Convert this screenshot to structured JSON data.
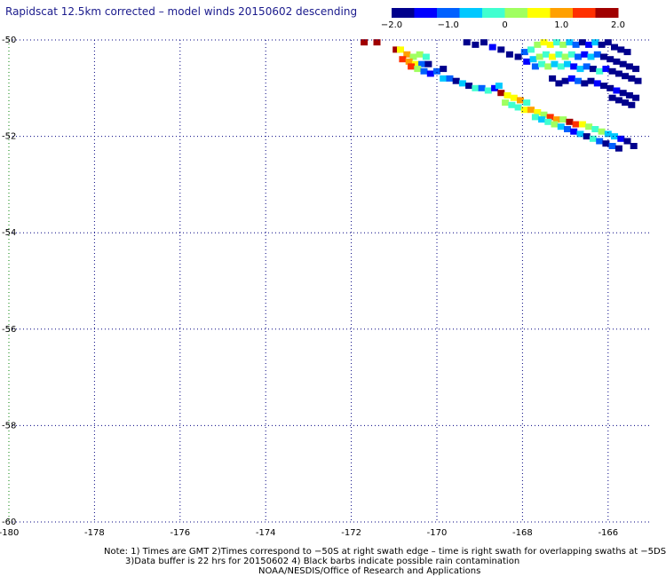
{
  "title": "Rapidscat 12.5km corrected – model winds 20150602 descending",
  "colorbar": {
    "min": -2.0,
    "max": 2.0,
    "tick_labels": [
      "−2.0",
      "−1.0",
      "0",
      "1.0",
      "2.0"
    ],
    "tick_values": [
      -2.0,
      -1.0,
      0,
      1.0,
      2.0
    ],
    "colors": [
      "#00008c",
      "#0000ff",
      "#0060ff",
      "#00c8ff",
      "#40ffd0",
      "#a0ff60",
      "#ffff00",
      "#ffa000",
      "#ff3000",
      "#a00000"
    ]
  },
  "map": {
    "lon_range": [
      -180,
      -165
    ],
    "lat_range": [
      -60,
      -50
    ],
    "lon_ticks": [
      "-180",
      "-178",
      "-176",
      "-174",
      "-172",
      "-170",
      "-168",
      "-166"
    ],
    "lon_tick_values": [
      -180,
      -178,
      -176,
      -174,
      -172,
      -170,
      -168,
      -166
    ],
    "lat_ticks": [
      "-50",
      "-52",
      "-54",
      "-56",
      "-58",
      "-60"
    ],
    "lat_tick_values": [
      -50,
      -52,
      -54,
      -56,
      -58,
      -60
    ],
    "gridline_color": "#000080",
    "swath_cells": [
      [
        -171.7,
        -50.05,
        2.0
      ],
      [
        -171.4,
        -50.05,
        2.0
      ],
      [
        -170.95,
        -50.2,
        1.8
      ],
      [
        -170.85,
        -50.2,
        0.5
      ],
      [
        -170.7,
        -50.3,
        0.8
      ],
      [
        -170.55,
        -50.35,
        0.3
      ],
      [
        -170.4,
        -50.3,
        0.0
      ],
      [
        -170.25,
        -50.35,
        -0.2
      ],
      [
        -170.8,
        -50.4,
        1.2
      ],
      [
        -170.65,
        -50.45,
        0.9
      ],
      [
        -170.5,
        -50.5,
        0.6
      ],
      [
        -170.35,
        -50.5,
        -1.2
      ],
      [
        -170.2,
        -50.5,
        -1.8
      ],
      [
        -170.6,
        -50.55,
        1.4
      ],
      [
        -170.45,
        -50.6,
        0.2
      ],
      [
        -170.3,
        -50.65,
        -0.9
      ],
      [
        -170.15,
        -50.7,
        -1.5
      ],
      [
        -170.0,
        -50.65,
        -1.0
      ],
      [
        -169.85,
        -50.6,
        -2.0
      ],
      [
        -169.85,
        -50.8,
        -0.5
      ],
      [
        -169.7,
        -50.8,
        -1.2
      ],
      [
        -169.55,
        -50.85,
        -1.8
      ],
      [
        -169.4,
        -50.9,
        -0.8
      ],
      [
        -169.25,
        -50.95,
        -1.6
      ],
      [
        -169.1,
        -51.0,
        -0.4
      ],
      [
        -168.95,
        -51.0,
        -1.2
      ],
      [
        -168.8,
        -51.05,
        -0.2
      ],
      [
        -168.65,
        -51.0,
        -1.5
      ],
      [
        -168.55,
        -50.95,
        -0.5
      ],
      [
        -168.5,
        -51.1,
        1.6
      ],
      [
        -168.35,
        -51.15,
        0.6
      ],
      [
        -168.2,
        -51.2,
        0.4
      ],
      [
        -168.05,
        -51.25,
        0.9
      ],
      [
        -167.9,
        -51.3,
        -0.2
      ],
      [
        -168.4,
        -51.3,
        0.3
      ],
      [
        -168.25,
        -51.35,
        -0.4
      ],
      [
        -168.1,
        -51.4,
        -0.1
      ],
      [
        -167.95,
        -51.45,
        0.5
      ],
      [
        -167.8,
        -51.45,
        1.0
      ],
      [
        -167.65,
        -51.5,
        0.6
      ],
      [
        -167.5,
        -51.55,
        0.2
      ],
      [
        -167.35,
        -51.6,
        1.3
      ],
      [
        -167.2,
        -51.65,
        0.8
      ],
      [
        -167.05,
        -51.65,
        0.3
      ],
      [
        -166.9,
        -51.7,
        1.8
      ],
      [
        -166.75,
        -51.75,
        1.5
      ],
      [
        -166.6,
        -51.75,
        0.7
      ],
      [
        -166.45,
        -51.8,
        0.1
      ],
      [
        -166.3,
        -51.85,
        -0.3
      ],
      [
        -166.15,
        -51.9,
        0.2
      ],
      [
        -166.0,
        -51.95,
        -0.5
      ],
      [
        -165.85,
        -52.0,
        -0.8
      ],
      [
        -165.7,
        -52.05,
        -1.3
      ],
      [
        -165.55,
        -52.1,
        -1.8
      ],
      [
        -165.4,
        -52.2,
        -2.0
      ],
      [
        -167.7,
        -51.6,
        -0.3
      ],
      [
        -167.55,
        -51.65,
        -0.6
      ],
      [
        -167.4,
        -51.7,
        -0.2
      ],
      [
        -167.25,
        -51.75,
        0.1
      ],
      [
        -167.1,
        -51.8,
        -0.5
      ],
      [
        -166.95,
        -51.85,
        -1.1
      ],
      [
        -166.8,
        -51.9,
        -1.5
      ],
      [
        -166.65,
        -51.95,
        -0.7
      ],
      [
        -166.5,
        -52.0,
        -1.7
      ],
      [
        -166.35,
        -52.05,
        -0.4
      ],
      [
        -166.2,
        -52.1,
        -1.0
      ],
      [
        -166.05,
        -52.15,
        -1.6
      ],
      [
        -165.9,
        -52.2,
        -0.9
      ],
      [
        -165.75,
        -52.25,
        -2.0
      ],
      [
        -169.3,
        -50.05,
        -2.0
      ],
      [
        -169.1,
        -50.1,
        -1.6
      ],
      [
        -168.9,
        -50.05,
        -1.9
      ],
      [
        -168.7,
        -50.15,
        -1.4
      ],
      [
        -168.5,
        -50.2,
        -2.0
      ],
      [
        -168.3,
        -50.3,
        -1.8
      ],
      [
        -168.1,
        -50.35,
        -2.0
      ],
      [
        -167.95,
        -50.25,
        -0.9
      ],
      [
        -167.8,
        -50.2,
        -0.3
      ],
      [
        -167.65,
        -50.1,
        0.2
      ],
      [
        -167.5,
        -50.05,
        0.7
      ],
      [
        -167.35,
        -50.1,
        0.4
      ],
      [
        -167.2,
        -50.05,
        -0.1
      ],
      [
        -167.05,
        -50.1,
        0.3
      ],
      [
        -166.9,
        -50.05,
        -0.6
      ],
      [
        -166.75,
        -50.1,
        -1.2
      ],
      [
        -166.6,
        -50.05,
        -1.8
      ],
      [
        -166.45,
        -50.1,
        -1.5
      ],
      [
        -166.3,
        -50.05,
        -0.8
      ],
      [
        -166.15,
        -50.1,
        -1.9
      ],
      [
        -166.0,
        -50.05,
        -2.0
      ],
      [
        -165.85,
        -50.15,
        -1.7
      ],
      [
        -165.7,
        -50.2,
        -2.0
      ],
      [
        -165.55,
        -50.25,
        -1.9
      ],
      [
        -167.9,
        -50.45,
        -1.5
      ],
      [
        -167.75,
        -50.4,
        -0.6
      ],
      [
        -167.6,
        -50.35,
        0.1
      ],
      [
        -167.45,
        -50.3,
        -0.3
      ],
      [
        -167.3,
        -50.35,
        0.5
      ],
      [
        -167.15,
        -50.3,
        -0.2
      ],
      [
        -167.0,
        -50.35,
        0.0
      ],
      [
        -166.85,
        -50.3,
        -0.4
      ],
      [
        -166.7,
        -50.35,
        -1.0
      ],
      [
        -166.55,
        -50.3,
        -1.5
      ],
      [
        -166.4,
        -50.35,
        -0.7
      ],
      [
        -166.25,
        -50.3,
        -1.1
      ],
      [
        -166.1,
        -50.35,
        -1.8
      ],
      [
        -165.95,
        -50.4,
        -2.0
      ],
      [
        -165.8,
        -50.45,
        -1.6
      ],
      [
        -165.65,
        -50.5,
        -1.9
      ],
      [
        -165.5,
        -50.55,
        -2.0
      ],
      [
        -165.35,
        -50.6,
        -2.0
      ],
      [
        -167.7,
        -50.55,
        -0.9
      ],
      [
        -167.55,
        -50.5,
        -0.2
      ],
      [
        -167.4,
        -50.55,
        0.3
      ],
      [
        -167.25,
        -50.5,
        -0.5
      ],
      [
        -167.1,
        -50.55,
        -0.1
      ],
      [
        -166.95,
        -50.5,
        -0.8
      ],
      [
        -166.8,
        -50.55,
        -1.3
      ],
      [
        -166.65,
        -50.6,
        -0.6
      ],
      [
        -166.5,
        -50.55,
        -1.2
      ],
      [
        -166.35,
        -50.6,
        -1.9
      ],
      [
        -166.2,
        -50.65,
        -0.4
      ],
      [
        -166.05,
        -50.6,
        -1.5
      ],
      [
        -165.9,
        -50.65,
        -2.0
      ],
      [
        -165.75,
        -50.7,
        -1.7
      ],
      [
        -165.6,
        -50.75,
        -2.0
      ],
      [
        -165.45,
        -50.8,
        -1.8
      ],
      [
        -165.3,
        -50.85,
        -2.0
      ],
      [
        -167.3,
        -50.8,
        -1.9
      ],
      [
        -167.15,
        -50.9,
        -2.0
      ],
      [
        -167.0,
        -50.85,
        -1.7
      ],
      [
        -166.85,
        -50.8,
        -1.4
      ],
      [
        -166.7,
        -50.85,
        -0.9
      ],
      [
        -166.55,
        -50.9,
        -1.6
      ],
      [
        -166.4,
        -50.85,
        -2.0
      ],
      [
        -166.25,
        -50.9,
        -1.3
      ],
      [
        -166.1,
        -50.95,
        -1.8
      ],
      [
        -165.95,
        -51.0,
        -2.0
      ],
      [
        -165.8,
        -51.05,
        -1.5
      ],
      [
        -165.65,
        -51.1,
        -1.9
      ],
      [
        -165.5,
        -51.15,
        -2.0
      ],
      [
        -165.35,
        -51.2,
        -2.0
      ],
      [
        -165.9,
        -51.2,
        -1.6
      ],
      [
        -165.75,
        -51.25,
        -2.0
      ],
      [
        -165.6,
        -51.3,
        -1.8
      ],
      [
        -165.45,
        -51.35,
        -2.0
      ]
    ]
  },
  "notes": [
    "Note: 1) Times are GMT 2)Times correspond to −50S at right swath edge – time is right swath for overlapping swaths at −5DS",
    "3)Data buffer is 22 hrs for 20150602 4) Black barbs indicate possible rain contamination",
    "NOAA/NESDIS/Office of Research and Applications"
  ]
}
